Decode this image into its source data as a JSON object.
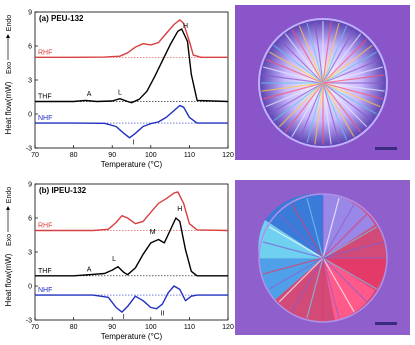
{
  "chart_data": [
    {
      "type": "line",
      "panel_label": "(a) PEU-132",
      "xlabel": "Temperature (°C)",
      "ylabel": "Heat flow(mW)",
      "axis_arrow_label_exo": "Exo",
      "axis_arrow_label_endo": "Endo",
      "xlim": [
        70,
        120
      ],
      "ylim": [
        -3,
        9
      ],
      "xticks": [
        "70",
        "80",
        "90",
        "100",
        "110",
        "120"
      ],
      "yticks": [
        "-3",
        "0",
        "3",
        "6",
        "9"
      ],
      "series": [
        {
          "name": "RHF",
          "color": "#d84040",
          "baseline": 5.0,
          "x": [
            70,
            80,
            88,
            92,
            94,
            96,
            98,
            100,
            102,
            104,
            106,
            107.5,
            108.5,
            110,
            111,
            113,
            120
          ],
          "y": [
            5.0,
            5.0,
            5.02,
            5.1,
            5.4,
            5.9,
            6.2,
            6.1,
            6.3,
            7.1,
            7.9,
            8.3,
            8.0,
            6.4,
            5.2,
            5.0,
            5.0
          ]
        },
        {
          "name": "THF",
          "color": "#000000",
          "baseline": 1.1,
          "x": [
            70,
            80,
            83,
            86,
            90,
            92,
            94,
            95,
            97,
            99,
            101,
            103,
            105,
            107,
            108,
            109.5,
            110.5,
            112,
            120
          ],
          "y": [
            1.1,
            1.1,
            1.2,
            1.1,
            1.15,
            1.35,
            1.1,
            1.0,
            1.3,
            2.0,
            3.3,
            4.7,
            6.1,
            7.3,
            7.5,
            6.4,
            3.5,
            1.2,
            1.1
          ]
        },
        {
          "name": "NHF",
          "color": "#2030c0",
          "baseline": -0.8,
          "x": [
            70,
            80,
            88,
            91,
            93,
            94.5,
            96,
            98,
            100,
            102,
            104,
            106,
            107.5,
            108.5,
            110,
            112,
            120
          ],
          "y": [
            -0.8,
            -0.8,
            -0.82,
            -1.1,
            -1.7,
            -2.1,
            -1.7,
            -1.1,
            -0.85,
            -0.7,
            -0.3,
            0.3,
            0.75,
            0.6,
            -0.3,
            -0.8,
            -0.8
          ]
        }
      ],
      "annotations": [
        {
          "text": "A",
          "x": 84,
          "y": 1.6
        },
        {
          "text": "L",
          "x": 92,
          "y": 1.7
        },
        {
          "text": "H",
          "x": 109,
          "y": 7.6
        },
        {
          "text": "I",
          "x": 95.5,
          "y": -2.7
        }
      ]
    },
    {
      "type": "line",
      "panel_label": "(b) IPEU-132",
      "xlabel": "Temperature (°C)",
      "ylabel": "Heat flow(mW)",
      "axis_arrow_label_exo": "Exo",
      "axis_arrow_label_endo": "Endo",
      "xlim": [
        70,
        120
      ],
      "ylim": [
        -3,
        9
      ],
      "xticks": [
        "70",
        "80",
        "90",
        "100",
        "110",
        "120"
      ],
      "yticks": [
        "-3",
        "0",
        "3",
        "6",
        "9"
      ],
      "series": [
        {
          "name": "RHF",
          "color": "#d84040",
          "baseline": 4.9,
          "x": [
            70,
            85,
            89,
            91,
            92.5,
            94,
            96,
            98,
            100,
            102,
            104,
            106,
            107,
            108.5,
            110,
            112,
            120
          ],
          "y": [
            4.9,
            4.9,
            5.0,
            5.6,
            6.2,
            6.0,
            5.5,
            5.7,
            6.5,
            7.3,
            7.7,
            8.2,
            8.3,
            7.3,
            5.5,
            4.95,
            4.9
          ]
        },
        {
          "name": "THF",
          "color": "#000000",
          "baseline": 0.9,
          "x": [
            70,
            80,
            84,
            88,
            90,
            91.5,
            93,
            94,
            96,
            98,
            100,
            102,
            103.5,
            105,
            106.5,
            107.5,
            109,
            110.5,
            112,
            120
          ],
          "y": [
            0.9,
            0.9,
            1.0,
            1.1,
            1.4,
            1.7,
            1.2,
            1.0,
            1.6,
            2.8,
            3.8,
            4.1,
            3.8,
            4.9,
            6.0,
            5.7,
            3.2,
            1.3,
            0.9,
            0.9
          ]
        },
        {
          "name": "NHF",
          "color": "#2030c0",
          "baseline": -0.8,
          "x": [
            70,
            85,
            89,
            91,
            92.5,
            94,
            96,
            98,
            100,
            101.5,
            103,
            104.5,
            106,
            107.5,
            109,
            110.5,
            112,
            120
          ],
          "y": [
            -0.8,
            -0.8,
            -1.0,
            -1.9,
            -2.3,
            -1.8,
            -0.9,
            -1.3,
            -1.9,
            -2.0,
            -1.6,
            -0.6,
            0.0,
            -0.3,
            -1.3,
            -0.9,
            -0.8,
            -0.8
          ]
        }
      ],
      "annotations": [
        {
          "text": "A",
          "x": 84,
          "y": 1.3
        },
        {
          "text": "L",
          "x": 90.5,
          "y": 2.2
        },
        {
          "text": "M",
          "x": 100.5,
          "y": 4.6
        },
        {
          "text": "H",
          "x": 107.5,
          "y": 6.6
        },
        {
          "text": "I",
          "x": 93,
          "y": -2.9
        },
        {
          "text": "II",
          "x": 103,
          "y": -2.6
        }
      ]
    }
  ],
  "micrographs": [
    {
      "name": "spherulite-micrograph-a",
      "colors": [
        "#8a55c8",
        "#e8e8ff",
        "#ff4d6d",
        "#ffcc40",
        "#59c8f0"
      ]
    },
    {
      "name": "spherulite-micrograph-b",
      "colors": [
        "#8f5fcc",
        "#e33a6a",
        "#70d0f0",
        "#7a60d8",
        "#ffffff"
      ]
    }
  ]
}
